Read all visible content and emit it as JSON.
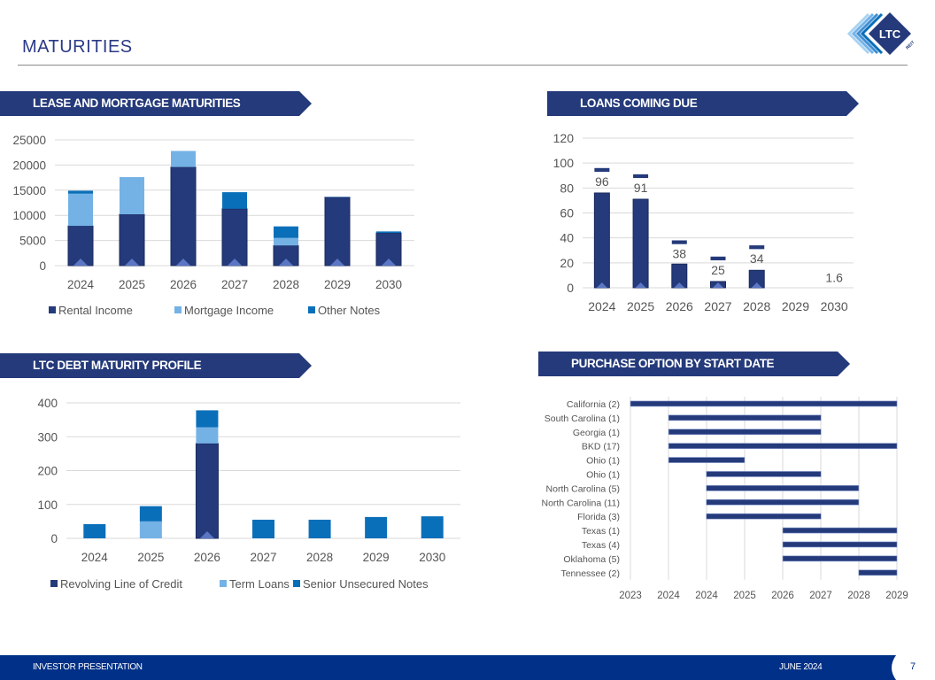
{
  "header": {
    "title": "MATURITIES",
    "logo_text": "LTC",
    "logo_subtext": "REIT"
  },
  "banners": {
    "lease": "LEASE AND MORTGAGE MATURITIES",
    "loans": "LOANS COMING DUE",
    "debt": "LTC DEBT MATURITY PROFILE",
    "purchase": "PURCHASE OPTION BY START DATE"
  },
  "footer": {
    "left": "INVESTOR PRESENTATION",
    "right": "JUNE 2024",
    "page": "7"
  },
  "colors": {
    "navy": "#243a7a",
    "light_blue": "#74b2e6",
    "mid_blue": "#0a6fb9",
    "banner": "#243a7a",
    "footer": "#003087"
  },
  "chart_data": [
    {
      "type": "bar",
      "stacked": true,
      "categories": [
        "2024",
        "2025",
        "2026",
        "2027",
        "2028",
        "2029",
        "2030"
      ],
      "series": [
        {
          "name": "Rental Income",
          "values": [
            7900,
            10200,
            19600,
            11300,
            4000,
            13600,
            6500
          ]
        },
        {
          "name": "Mortgage Income",
          "values": [
            6400,
            7400,
            3200,
            0,
            1500,
            100,
            0
          ]
        },
        {
          "name": "Other Notes",
          "values": [
            600,
            0,
            0,
            3300,
            2300,
            0,
            300
          ]
        }
      ],
      "ylim": [
        0,
        25000
      ],
      "yticks": [
        "0",
        "5000",
        "10000",
        "15000",
        "20000",
        "25000"
      ],
      "grid": true,
      "legend": "bottom"
    },
    {
      "type": "bar",
      "categories": [
        "2024",
        "2025",
        "2026",
        "2027",
        "2028",
        "2029",
        "2030"
      ],
      "values": [
        76,
        71,
        19,
        5,
        14,
        0,
        0
      ],
      "totals": [
        96,
        91,
        38,
        25,
        34,
        0,
        1.6
      ],
      "data_labels": [
        "96",
        "91",
        "38",
        "25",
        "34",
        "",
        "1.6"
      ],
      "ylim": [
        0,
        120
      ],
      "yticks": [
        "0",
        "20",
        "40",
        "60",
        "80",
        "100",
        "120"
      ],
      "grid": true
    },
    {
      "type": "bar",
      "stacked": true,
      "categories": [
        "2024",
        "2025",
        "2026",
        "2027",
        "2028",
        "2029",
        "2030"
      ],
      "series": [
        {
          "name": "Revolving Line of Credit",
          "values": [
            0,
            0,
            280,
            0,
            0,
            0,
            0
          ]
        },
        {
          "name": "Term Loans",
          "values": [
            0,
            50,
            48,
            0,
            0,
            0,
            0
          ]
        },
        {
          "name": "Senior Unsecured Notes",
          "values": [
            42,
            45,
            50,
            55,
            55,
            63,
            65
          ]
        }
      ],
      "ylim": [
        0,
        400
      ],
      "yticks": [
        "0",
        "100",
        "200",
        "300",
        "400"
      ],
      "grid": true,
      "legend": "bottom"
    },
    {
      "type": "bar",
      "orientation": "horizontal",
      "categories": [
        "California (2)",
        "South Carolina (1)",
        "Georgia (1)",
        "BKD (17)",
        "Ohio (1)",
        "Ohio (1)",
        "North Carolina (5)",
        "North Carolina (11)",
        "Florida (3)",
        "Texas (1)",
        "Texas (4)",
        "Oklahoma (5)",
        "Tennessee (2)"
      ],
      "start": [
        2023.0,
        2023.86,
        2023.86,
        2023.86,
        2023.86,
        2024.71,
        2024.71,
        2024.71,
        2024.71,
        2026.43,
        2026.43,
        2026.43,
        2028.14
      ],
      "end": [
        2029.0,
        2027.29,
        2027.29,
        2029.0,
        2025.57,
        2027.29,
        2028.14,
        2028.14,
        2027.29,
        2029.0,
        2029.0,
        2029.0,
        2029.0
      ],
      "xlim": [
        2023,
        2029
      ],
      "xticks": [
        "2023",
        "2024",
        "2024",
        "2025",
        "2026",
        "2027",
        "2028",
        "2029"
      ],
      "grid": true
    }
  ]
}
